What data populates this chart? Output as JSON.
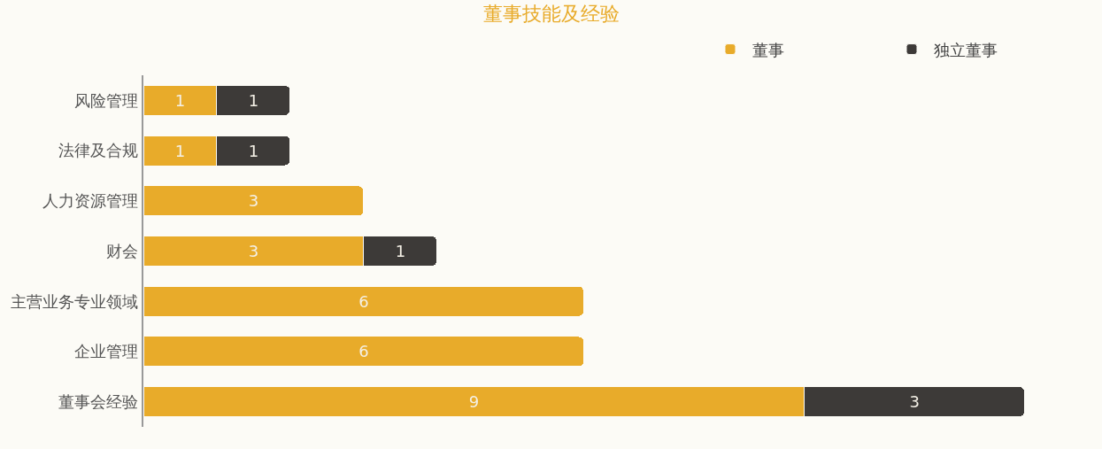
{
  "chart_data": {
    "type": "bar",
    "orientation": "horizontal",
    "stacked": true,
    "title": "董事技能及经验",
    "categories": [
      "风险管理",
      "法律及合规",
      "人力资源管理",
      "财会",
      "主营业务专业领域",
      "企业管理",
      "董事会经验"
    ],
    "series": [
      {
        "name": "董事",
        "color": "#e8ab2a",
        "values": [
          1,
          1,
          3,
          3,
          6,
          6,
          9
        ]
      },
      {
        "name": "独立董事",
        "color": "#3d3a38",
        "values": [
          1,
          1,
          null,
          1,
          null,
          null,
          3
        ]
      }
    ],
    "data_labels": true,
    "legend": "top right",
    "tick_labels": "y"
  }
}
